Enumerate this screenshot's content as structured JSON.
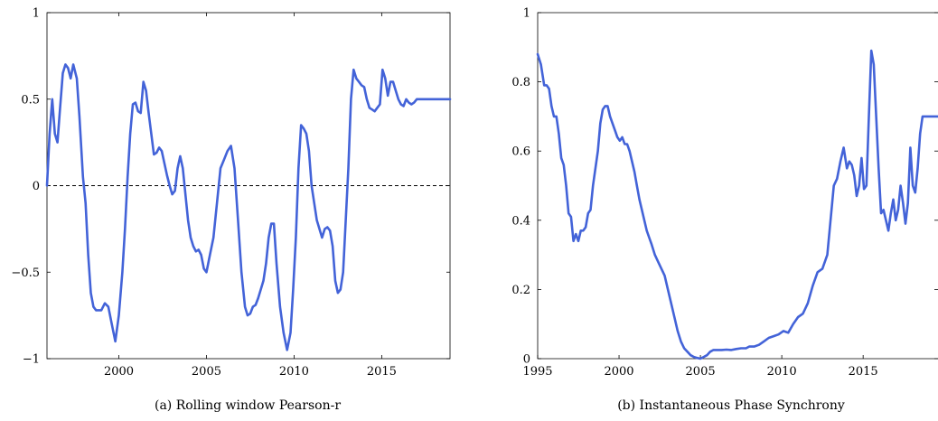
{
  "chart_data": [
    {
      "type": "line",
      "panel": "a",
      "caption": "(a) Rolling window Pearson-r",
      "xlim": [
        1995.9,
        2018.9
      ],
      "ylim": [
        -1,
        1
      ],
      "xticks": [
        2000,
        2005,
        2010,
        2015
      ],
      "yticks": [
        -1,
        -0.5,
        0,
        0.5,
        1
      ],
      "ytick_labels": [
        "−1",
        "−0.5",
        "0",
        "0.5",
        "1"
      ],
      "reference_line": {
        "y": 0,
        "style": "dashed",
        "color": "#000000"
      },
      "color": "#4363d8",
      "grid": false,
      "series": [
        {
          "x": [
            1995.9,
            1996.05,
            1996.2,
            1996.35,
            1996.5,
            1996.65,
            1996.8,
            1996.95,
            1997.1,
            1997.25,
            1997.4,
            1997.6,
            1997.75,
            1997.95,
            1998.1,
            1998.25,
            1998.4,
            1998.55,
            1998.7,
            1998.85,
            1999.0,
            1999.2,
            1999.4,
            1999.6,
            1999.8,
            2000.0,
            2000.2,
            2000.35,
            2000.5,
            2000.65,
            2000.8,
            2000.95,
            2001.1,
            2001.25,
            2001.4,
            2001.55,
            2001.7,
            2001.85,
            2002.0,
            2002.15,
            2002.3,
            2002.45,
            2002.6,
            2002.75,
            2002.9,
            2003.05,
            2003.2,
            2003.35,
            2003.5,
            2003.65,
            2003.8,
            2003.95,
            2004.1,
            2004.25,
            2004.4,
            2004.55,
            2004.7,
            2004.85,
            2005.0,
            2005.2,
            2005.4,
            2005.6,
            2005.8,
            2006.0,
            2006.2,
            2006.4,
            2006.6,
            2006.8,
            2007.0,
            2007.2,
            2007.35,
            2007.5,
            2007.65,
            2007.8,
            2007.95,
            2008.1,
            2008.25,
            2008.4,
            2008.55,
            2008.7,
            2008.85,
            2009.0,
            2009.2,
            2009.4,
            2009.6,
            2009.8,
            2009.95,
            2010.1,
            2010.25,
            2010.4,
            2010.55,
            2010.7,
            2010.85,
            2011.0,
            2011.15,
            2011.3,
            2011.45,
            2011.6,
            2011.75,
            2011.9,
            2012.05,
            2012.2,
            2012.35,
            2012.5,
            2012.65,
            2012.8,
            2012.95,
            2013.1,
            2013.25,
            2013.4,
            2013.55,
            2013.7,
            2013.85,
            2014.0,
            2014.15,
            2014.3,
            2014.45,
            2014.6,
            2014.75,
            2014.9,
            2015.05,
            2015.2,
            2015.35,
            2015.5,
            2015.65,
            2015.8,
            2015.95,
            2016.1,
            2016.25,
            2016.4,
            2016.55,
            2016.7,
            2016.85,
            2017.0,
            2017.15,
            2017.3,
            2017.45,
            2017.6,
            2017.75,
            2017.9,
            2018.05,
            2018.2,
            2018.35,
            2018.5,
            2018.65,
            2018.8,
            2018.9
          ],
          "y": [
            0.0,
            0.3,
            0.5,
            0.3,
            0.25,
            0.45,
            0.65,
            0.7,
            0.68,
            0.62,
            0.7,
            0.62,
            0.4,
            0.05,
            -0.1,
            -0.4,
            -0.62,
            -0.7,
            -0.72,
            -0.72,
            -0.72,
            -0.68,
            -0.7,
            -0.8,
            -0.9,
            -0.75,
            -0.5,
            -0.25,
            0.05,
            0.3,
            0.47,
            0.48,
            0.43,
            0.42,
            0.6,
            0.55,
            0.42,
            0.3,
            0.18,
            0.19,
            0.22,
            0.2,
            0.13,
            0.06,
            0.0,
            -0.05,
            -0.03,
            0.1,
            0.17,
            0.1,
            -0.05,
            -0.2,
            -0.3,
            -0.35,
            -0.38,
            -0.37,
            -0.4,
            -0.48,
            -0.5,
            -0.4,
            -0.3,
            -0.1,
            0.1,
            0.15,
            0.2,
            0.23,
            0.1,
            -0.2,
            -0.5,
            -0.7,
            -0.75,
            -0.74,
            -0.7,
            -0.69,
            -0.65,
            -0.6,
            -0.55,
            -0.45,
            -0.3,
            -0.22,
            -0.22,
            -0.45,
            -0.7,
            -0.85,
            -0.95,
            -0.85,
            -0.6,
            -0.3,
            0.1,
            0.35,
            0.33,
            0.3,
            0.2,
            0.0,
            -0.1,
            -0.2,
            -0.25,
            -0.3,
            -0.25,
            -0.24,
            -0.26,
            -0.35,
            -0.55,
            -0.62,
            -0.6,
            -0.5,
            -0.2,
            0.1,
            0.5,
            0.67,
            0.62,
            0.6,
            0.58,
            0.57,
            0.5,
            0.45,
            0.44,
            0.43,
            0.45,
            0.47,
            0.67,
            0.62,
            0.52,
            0.6,
            0.6,
            0.55,
            0.5,
            0.47,
            0.46,
            0.5,
            0.48,
            0.47,
            0.48,
            0.5,
            0.5,
            0.5,
            0.5,
            0.5,
            0.5,
            0.5,
            0.5,
            0.5,
            0.5,
            0.5,
            0.5,
            0.5,
            0.5
          ]
        }
      ]
    },
    {
      "type": "line",
      "panel": "b",
      "caption": "(b) Instantaneous Phase Synchrony",
      "xlim": [
        1995,
        2019.6
      ],
      "ylim": [
        0,
        1
      ],
      "xticks": [
        1995,
        2000,
        2005,
        2010,
        2015
      ],
      "yticks": [
        0,
        0.2,
        0.4,
        0.6,
        0.8,
        1
      ],
      "ytick_labels": [
        "0",
        "0.2",
        "0.4",
        "0.6",
        "0.8",
        "1"
      ],
      "color": "#4363d8",
      "grid": false,
      "series": [
        {
          "x": [
            1995.0,
            1995.2,
            1995.4,
            1995.55,
            1995.7,
            1995.85,
            1996.0,
            1996.15,
            1996.3,
            1996.45,
            1996.6,
            1996.75,
            1996.9,
            1997.05,
            1997.2,
            1997.35,
            1997.5,
            1997.65,
            1997.8,
            1997.95,
            1998.1,
            1998.25,
            1998.4,
            1998.55,
            1998.7,
            1998.85,
            1999.0,
            1999.15,
            1999.3,
            1999.45,
            1999.6,
            1999.75,
            1999.9,
            2000.05,
            2000.2,
            2000.35,
            2000.5,
            2000.65,
            2000.8,
            2000.95,
            2001.1,
            2001.25,
            2001.4,
            2001.55,
            2001.7,
            2001.85,
            2002.0,
            2002.2,
            2002.4,
            2002.6,
            2002.8,
            2003.0,
            2003.2,
            2003.4,
            2003.6,
            2003.8,
            2004.0,
            2004.2,
            2004.4,
            2004.6,
            2004.8,
            2005.0,
            2005.2,
            2005.4,
            2005.6,
            2005.8,
            2006.0,
            2006.3,
            2006.6,
            2006.9,
            2007.2,
            2007.5,
            2007.8,
            2008.0,
            2008.3,
            2008.6,
            2008.9,
            2009.2,
            2009.5,
            2009.8,
            2010.1,
            2010.4,
            2010.7,
            2011.0,
            2011.3,
            2011.6,
            2011.9,
            2012.2,
            2012.5,
            2012.8,
            2013.0,
            2013.2,
            2013.4,
            2013.6,
            2013.8,
            2014.0,
            2014.15,
            2014.3,
            2014.45,
            2014.6,
            2014.75,
            2014.9,
            2015.05,
            2015.2,
            2015.35,
            2015.5,
            2015.65,
            2015.8,
            2015.95,
            2016.1,
            2016.25,
            2016.4,
            2016.55,
            2016.7,
            2016.85,
            2017.0,
            2017.15,
            2017.3,
            2017.45,
            2017.6,
            2017.75,
            2017.9,
            2018.05,
            2018.2,
            2018.35,
            2018.5,
            2018.65,
            2018.8,
            2018.95,
            2019.1,
            2019.25,
            2019.4,
            2019.55,
            2019.6
          ],
          "y": [
            0.88,
            0.85,
            0.79,
            0.79,
            0.78,
            0.73,
            0.7,
            0.7,
            0.65,
            0.58,
            0.56,
            0.5,
            0.42,
            0.41,
            0.34,
            0.36,
            0.34,
            0.37,
            0.37,
            0.38,
            0.42,
            0.43,
            0.5,
            0.55,
            0.6,
            0.68,
            0.72,
            0.73,
            0.73,
            0.7,
            0.68,
            0.66,
            0.64,
            0.63,
            0.64,
            0.62,
            0.62,
            0.6,
            0.57,
            0.54,
            0.5,
            0.46,
            0.43,
            0.4,
            0.37,
            0.35,
            0.33,
            0.3,
            0.28,
            0.26,
            0.24,
            0.2,
            0.16,
            0.12,
            0.08,
            0.05,
            0.03,
            0.02,
            0.01,
            0.005,
            0.002,
            0.0,
            0.005,
            0.01,
            0.02,
            0.025,
            0.025,
            0.025,
            0.026,
            0.025,
            0.028,
            0.03,
            0.03,
            0.035,
            0.035,
            0.04,
            0.05,
            0.06,
            0.065,
            0.07,
            0.08,
            0.075,
            0.1,
            0.12,
            0.13,
            0.16,
            0.21,
            0.25,
            0.26,
            0.3,
            0.4,
            0.5,
            0.52,
            0.57,
            0.61,
            0.55,
            0.57,
            0.56,
            0.53,
            0.47,
            0.5,
            0.58,
            0.49,
            0.5,
            0.7,
            0.89,
            0.85,
            0.7,
            0.55,
            0.42,
            0.43,
            0.4,
            0.37,
            0.42,
            0.46,
            0.4,
            0.43,
            0.5,
            0.45,
            0.39,
            0.45,
            0.61,
            0.5,
            0.48,
            0.55,
            0.65,
            0.7,
            0.7,
            0.7,
            0.7,
            0.7,
            0.7,
            0.7,
            0.7
          ]
        }
      ]
    }
  ]
}
